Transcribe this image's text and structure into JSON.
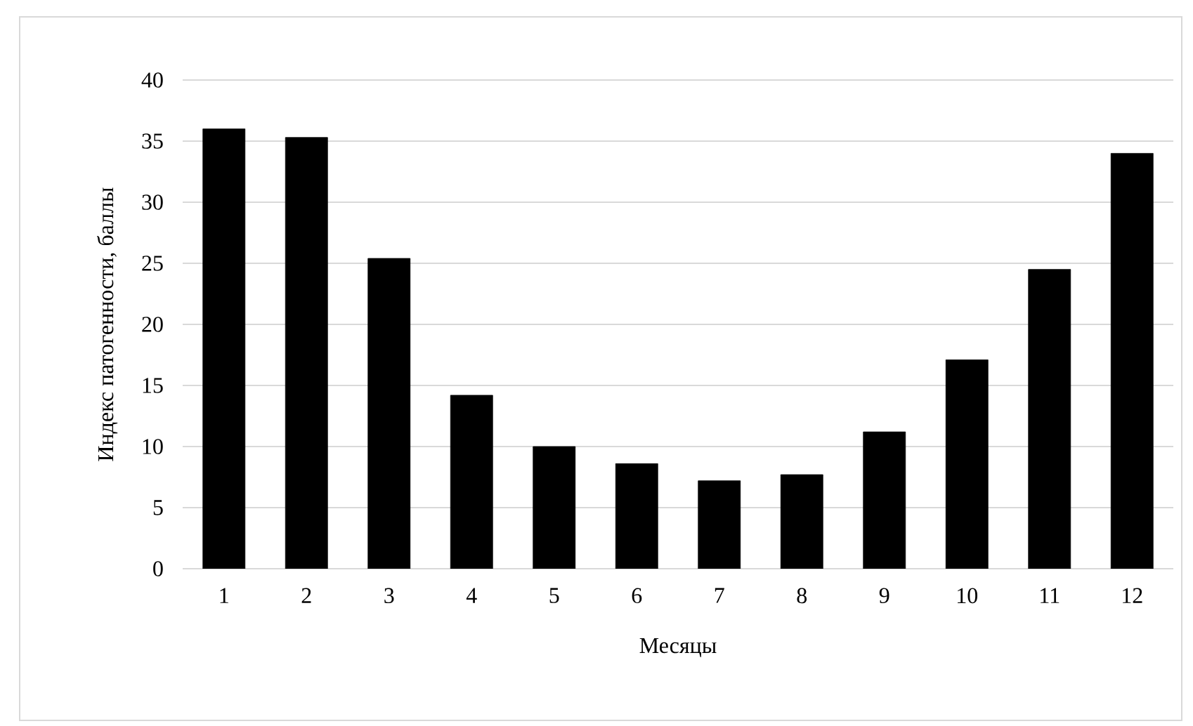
{
  "chart_data": {
    "type": "bar",
    "xlabel": "Месяцы",
    "ylabel": "Индекс патогенности, баллы",
    "categories": [
      "1",
      "2",
      "3",
      "4",
      "5",
      "6",
      "7",
      "8",
      "9",
      "10",
      "11",
      "12"
    ],
    "values": [
      36.0,
      35.3,
      25.4,
      14.2,
      10.0,
      8.6,
      7.2,
      7.7,
      11.2,
      17.1,
      24.5,
      34.0
    ],
    "color": "#000000",
    "ylim": [
      0,
      40
    ],
    "yticks": [
      0,
      5,
      10,
      15,
      20,
      25,
      30,
      35,
      40
    ],
    "grid": "y"
  }
}
